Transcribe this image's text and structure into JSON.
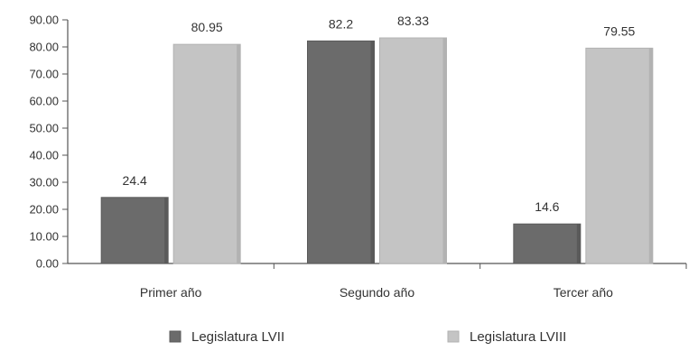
{
  "chart_data": {
    "type": "bar",
    "categories": [
      "Primer año",
      "Segundo año",
      "Tercer año"
    ],
    "series": [
      {
        "name": "Legislatura LVII",
        "values": [
          24.4,
          82.2,
          14.6
        ],
        "labels": [
          "24.4",
          "82.2",
          "14.6"
        ],
        "color": "#6b6b6b"
      },
      {
        "name": "Legislatura LVIII",
        "values": [
          80.95,
          83.33,
          79.55
        ],
        "labels": [
          "80.95",
          "83.33",
          "79.55"
        ],
        "color": "#c4c4c4"
      }
    ],
    "ylim": [
      0,
      90
    ],
    "yticks": [
      "0.00",
      "10.00",
      "20.00",
      "30.00",
      "40.00",
      "50.00",
      "60.00",
      "70.00",
      "80.00",
      "90.00"
    ],
    "title": "",
    "xlabel": "",
    "ylabel": "",
    "grid": false,
    "legend_position": "bottom"
  }
}
